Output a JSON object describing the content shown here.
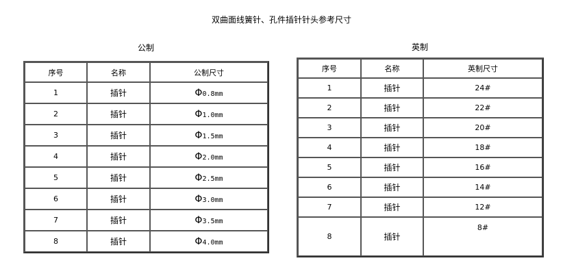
{
  "title": "双曲面线簧针、孔件插针针头参考尺寸",
  "metric": {
    "caption": "公制",
    "headers": [
      "序号",
      "名称",
      "公制尺寸"
    ],
    "rows": [
      {
        "no": "1",
        "name": "插针",
        "symbol": "Φ",
        "size": "0.8mm"
      },
      {
        "no": "2",
        "name": "插针",
        "symbol": "Φ",
        "size": "1.0mm"
      },
      {
        "no": "3",
        "name": "插针",
        "symbol": "Φ",
        "size": "1.5mm"
      },
      {
        "no": "4",
        "name": "插针",
        "symbol": "Φ",
        "size": "2.0mm"
      },
      {
        "no": "5",
        "name": "插针",
        "symbol": "Φ",
        "size": "2.5mm"
      },
      {
        "no": "6",
        "name": "插针",
        "symbol": "Φ",
        "size": "3.0mm"
      },
      {
        "no": "7",
        "name": "插针",
        "symbol": "Φ",
        "size": "3.5mm"
      },
      {
        "no": "8",
        "name": "插针",
        "symbol": "Φ",
        "size": "4.0mm"
      }
    ]
  },
  "imperial": {
    "caption": "英制",
    "headers": [
      "序号",
      "名称",
      "英制尺寸"
    ],
    "rows": [
      {
        "no": "1",
        "name": "插针",
        "size": "24#"
      },
      {
        "no": "2",
        "name": "插针",
        "size": "22#"
      },
      {
        "no": "3",
        "name": "插针",
        "size": "20#"
      },
      {
        "no": "4",
        "name": "插针",
        "size": "18#"
      },
      {
        "no": "5",
        "name": "插针",
        "size": "16#"
      },
      {
        "no": "6",
        "name": "插针",
        "size": "14#"
      },
      {
        "no": "7",
        "name": "插针",
        "size": "12#"
      },
      {
        "no": "8",
        "name": "插针",
        "size": "8#"
      }
    ]
  }
}
